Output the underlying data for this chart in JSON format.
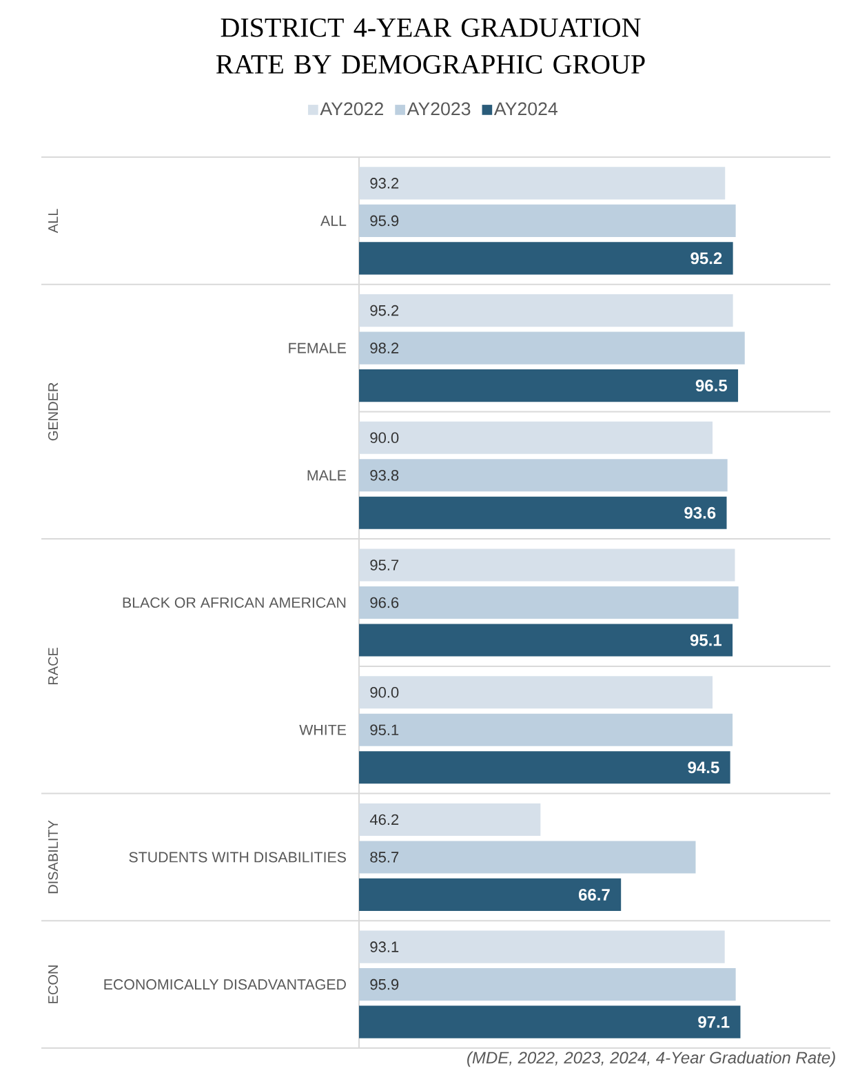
{
  "chart_data": {
    "type": "bar",
    "orientation": "horizontal",
    "title": "DISTRICT 4-YEAR GRADUATION RATE BY DEMOGRAPHIC GROUP",
    "categories": [
      "ALL",
      "FEMALE",
      "MALE",
      "BLACK OR AFRICAN AMERICAN",
      "WHITE",
      "STUDENTS WITH DISABILITIES",
      "ECONOMICALLY DISADVANTAGED"
    ],
    "series": [
      {
        "name": "AY2022",
        "color": "#d6e0ea",
        "values": [
          93.2,
          95.2,
          90.0,
          95.7,
          90.0,
          46.2,
          93.1
        ],
        "value_labels": [
          "93.2",
          "95.2",
          "90.0",
          "95.7",
          "90.0",
          "46.2",
          "93.1"
        ]
      },
      {
        "name": "AY2023",
        "color": "#bccfdf",
        "values": [
          95.9,
          98.2,
          93.8,
          96.6,
          95.1,
          85.7,
          95.9
        ],
        "value_labels": [
          "95.9",
          "98.2",
          "93.8",
          "96.6",
          "95.1",
          "85.7",
          "95.9"
        ]
      },
      {
        "name": "AY2024",
        "color": "#2a5c7a",
        "values": [
          95.2,
          96.5,
          93.6,
          95.1,
          94.5,
          66.7,
          97.1
        ],
        "value_labels": [
          "95.2",
          "96.5",
          "93.6",
          "95.1",
          "94.5",
          "66.7",
          "97.1"
        ]
      }
    ],
    "xlim": [
      0,
      120
    ],
    "tick_labels": "y",
    "legend": "top",
    "annotations": [
      "ALL",
      "GENDER",
      "RACE",
      "DISABILITY",
      "ECON",
      "(MDE, 2022, 2023, 2024, 4-Year Graduation Rate)"
    ]
  }
}
